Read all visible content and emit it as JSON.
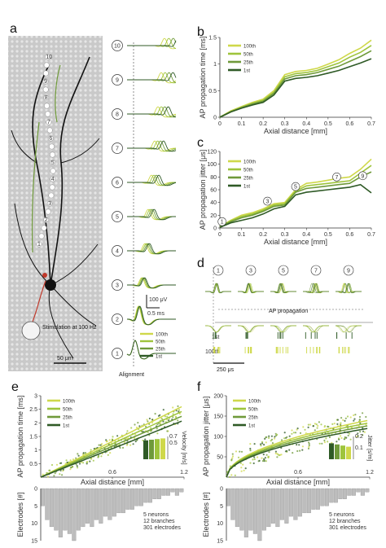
{
  "colors": {
    "c100": "#cfd84a",
    "c50": "#9ec43c",
    "c25": "#6f9a3a",
    "c1": "#2f5a26",
    "axis": "#333333"
  },
  "panels": {
    "a": {
      "letter": "a",
      "electrode_numbers": [
        "10",
        "9",
        "8",
        "7",
        "6",
        "5",
        "4",
        "3",
        "2",
        "1"
      ],
      "trace_numbers": [
        "10",
        "9",
        "8",
        "7",
        "6",
        "5",
        "4",
        "3",
        "2",
        "1"
      ],
      "stim_label": "Stimulation at 100 Hz",
      "scalebar_image": "50 μm",
      "scalebar_v": "100 μV",
      "scalebar_t": "0.5 ms",
      "alignment": "Alignment",
      "legend": [
        "100th",
        "50th",
        "25th",
        "1st"
      ]
    },
    "d": {
      "letter": "d",
      "circle_labels": [
        "1",
        "3",
        "5",
        "7",
        "9"
      ],
      "ap_label": "AP propagation",
      "row_1st": "1st",
      "row_100th": "100th",
      "time_scale": "250 μs",
      "alignment": "Alignment"
    }
  },
  "chart_data": [
    {
      "panel": "b",
      "type": "line",
      "xlabel": "Axial distance [mm]",
      "ylabel": "AP propagation time [ms]",
      "xlim": [
        0,
        0.7
      ],
      "ylim": [
        0,
        1.5
      ],
      "xticks": [
        0,
        0.1,
        0.2,
        0.3,
        0.4,
        0.5,
        0.6,
        0.7
      ],
      "yticks": [
        0,
        0.5,
        1,
        1.5
      ],
      "legend": "top-left",
      "series": [
        {
          "name": "100th",
          "color": "#cfd84a",
          "x": [
            0,
            0.05,
            0.1,
            0.15,
            0.2,
            0.25,
            0.3,
            0.35,
            0.4,
            0.45,
            0.5,
            0.55,
            0.6,
            0.65,
            0.7
          ],
          "y": [
            0,
            0.12,
            0.2,
            0.28,
            0.34,
            0.5,
            0.8,
            0.86,
            0.88,
            0.92,
            1.0,
            1.08,
            1.2,
            1.3,
            1.45
          ]
        },
        {
          "name": "50th",
          "color": "#9ec43c",
          "x": [
            0,
            0.05,
            0.1,
            0.15,
            0.2,
            0.25,
            0.3,
            0.35,
            0.4,
            0.45,
            0.5,
            0.55,
            0.6,
            0.65,
            0.7
          ],
          "y": [
            0,
            0.11,
            0.19,
            0.26,
            0.32,
            0.47,
            0.76,
            0.82,
            0.84,
            0.88,
            0.95,
            1.02,
            1.13,
            1.22,
            1.35
          ]
        },
        {
          "name": "25th",
          "color": "#6f9a3a",
          "x": [
            0,
            0.05,
            0.1,
            0.15,
            0.2,
            0.25,
            0.3,
            0.35,
            0.4,
            0.45,
            0.5,
            0.55,
            0.6,
            0.65,
            0.7
          ],
          "y": [
            0,
            0.1,
            0.18,
            0.25,
            0.3,
            0.45,
            0.72,
            0.78,
            0.8,
            0.84,
            0.9,
            0.96,
            1.05,
            1.14,
            1.25
          ]
        },
        {
          "name": "1st",
          "color": "#2f5a26",
          "x": [
            0,
            0.05,
            0.1,
            0.15,
            0.2,
            0.25,
            0.3,
            0.35,
            0.4,
            0.45,
            0.5,
            0.55,
            0.6,
            0.65,
            0.7
          ],
          "y": [
            0,
            0.1,
            0.17,
            0.23,
            0.28,
            0.42,
            0.68,
            0.73,
            0.75,
            0.78,
            0.83,
            0.88,
            0.95,
            1.02,
            1.1
          ]
        }
      ]
    },
    {
      "panel": "c",
      "type": "line",
      "xlabel": "Axial distance [mm]",
      "ylabel": "AP propagation jitter [μs]",
      "xlim": [
        0,
        0.7
      ],
      "ylim": [
        0,
        120
      ],
      "xticks": [
        0,
        0.1,
        0.2,
        0.3,
        0.4,
        0.5,
        0.6,
        0.7
      ],
      "yticks": [
        0,
        20,
        40,
        60,
        80,
        100,
        120
      ],
      "legend": "top-left",
      "annotations": [
        {
          "label": "1",
          "x": 0.01,
          "y": 10
        },
        {
          "label": "3",
          "x": 0.22,
          "y": 42
        },
        {
          "label": "5",
          "x": 0.35,
          "y": 65
        },
        {
          "label": "7",
          "x": 0.54,
          "y": 80
        },
        {
          "label": "9",
          "x": 0.66,
          "y": 82
        }
      ],
      "series": [
        {
          "name": "100th",
          "color": "#cfd84a",
          "x": [
            0,
            0.05,
            0.1,
            0.15,
            0.2,
            0.25,
            0.3,
            0.35,
            0.4,
            0.45,
            0.5,
            0.55,
            0.6,
            0.65,
            0.7
          ],
          "y": [
            2,
            12,
            20,
            24,
            30,
            38,
            40,
            60,
            70,
            72,
            75,
            78,
            80,
            92,
            108
          ]
        },
        {
          "name": "50th",
          "color": "#9ec43c",
          "x": [
            0,
            0.05,
            0.1,
            0.15,
            0.2,
            0.25,
            0.3,
            0.35,
            0.4,
            0.45,
            0.5,
            0.55,
            0.6,
            0.65,
            0.7
          ],
          "y": [
            2,
            11,
            18,
            22,
            28,
            36,
            38,
            58,
            66,
            68,
            70,
            72,
            74,
            86,
            98
          ]
        },
        {
          "name": "25th",
          "color": "#6f9a3a",
          "x": [
            0,
            0.05,
            0.1,
            0.15,
            0.2,
            0.25,
            0.3,
            0.35,
            0.4,
            0.45,
            0.5,
            0.55,
            0.6,
            0.65,
            0.7
          ],
          "y": [
            2,
            10,
            16,
            20,
            26,
            34,
            36,
            56,
            62,
            64,
            66,
            68,
            70,
            80,
            88
          ]
        },
        {
          "name": "1st",
          "color": "#2f5a26",
          "x": [
            0,
            0.05,
            0.1,
            0.15,
            0.2,
            0.25,
            0.3,
            0.35,
            0.4,
            0.45,
            0.5,
            0.55,
            0.6,
            0.65,
            0.7
          ],
          "y": [
            1,
            8,
            12,
            16,
            22,
            30,
            34,
            52,
            56,
            58,
            60,
            62,
            64,
            68,
            55
          ]
        }
      ]
    },
    {
      "panel": "e",
      "type": "scatter",
      "xlabel": "Axial distance [mm]",
      "ylabel": "AP propagation time [ms]",
      "xlim": [
        0,
        1.2
      ],
      "ylim": [
        0,
        3
      ],
      "xticks": [
        0.6,
        1.2
      ],
      "yticks": [
        0.5,
        1,
        1.5,
        2,
        2.5,
        3
      ],
      "legend": "top-left",
      "series_names": [
        "100th",
        "50th",
        "25th",
        "1st"
      ],
      "fit_slopes": [
        2.2,
        2.05,
        1.9,
        1.75
      ],
      "inset": {
        "ylabel": "Velocity [m/s]",
        "yticks": [
          0.5,
          0.7
        ],
        "values": [
          0.58,
          0.6,
          0.62,
          0.64
        ]
      },
      "histogram": {
        "ylabel": "Electrodes [#]",
        "yticks": [
          0,
          5,
          10,
          15
        ],
        "values": [
          5,
          9,
          11,
          12,
          14,
          12,
          13,
          15,
          12,
          11,
          10,
          11,
          9,
          10,
          8,
          9,
          8,
          7,
          7,
          6,
          6,
          5,
          5,
          4,
          4,
          3,
          3,
          2,
          2,
          1,
          2,
          1
        ]
      },
      "summary": [
        "5 neurons",
        "12 branches",
        "301 electrodes"
      ]
    },
    {
      "panel": "f",
      "type": "scatter",
      "xlabel": "Axial distance [mm]",
      "ylabel": "AP propagation jitter [μs]",
      "xlim": [
        0,
        1.2
      ],
      "ylim": [
        0,
        200
      ],
      "xticks": [
        0.6,
        1.2
      ],
      "yticks": [
        50,
        100,
        150,
        200
      ],
      "legend": "top-left",
      "series_names": [
        "100th",
        "50th",
        "25th",
        "1st"
      ],
      "fit_scale": [
        128,
        122,
        116,
        110
      ],
      "inset": {
        "ylabel": "Jitter [s/m]",
        "yticks": [
          0.1,
          0.2
        ],
        "values": [
          0.14,
          0.13,
          0.12,
          0.11
        ]
      },
      "histogram": {
        "ylabel": "Electrodes [#]",
        "yticks": [
          0,
          5,
          10,
          15
        ],
        "values": [
          5,
          9,
          11,
          12,
          14,
          12,
          13,
          15,
          12,
          11,
          10,
          11,
          9,
          10,
          8,
          9,
          8,
          7,
          7,
          6,
          6,
          5,
          5,
          4,
          4,
          3,
          3,
          2,
          2,
          1,
          2,
          1
        ]
      },
      "summary": [
        "5 neurons",
        "12 branches",
        "301 electrodes"
      ]
    }
  ]
}
